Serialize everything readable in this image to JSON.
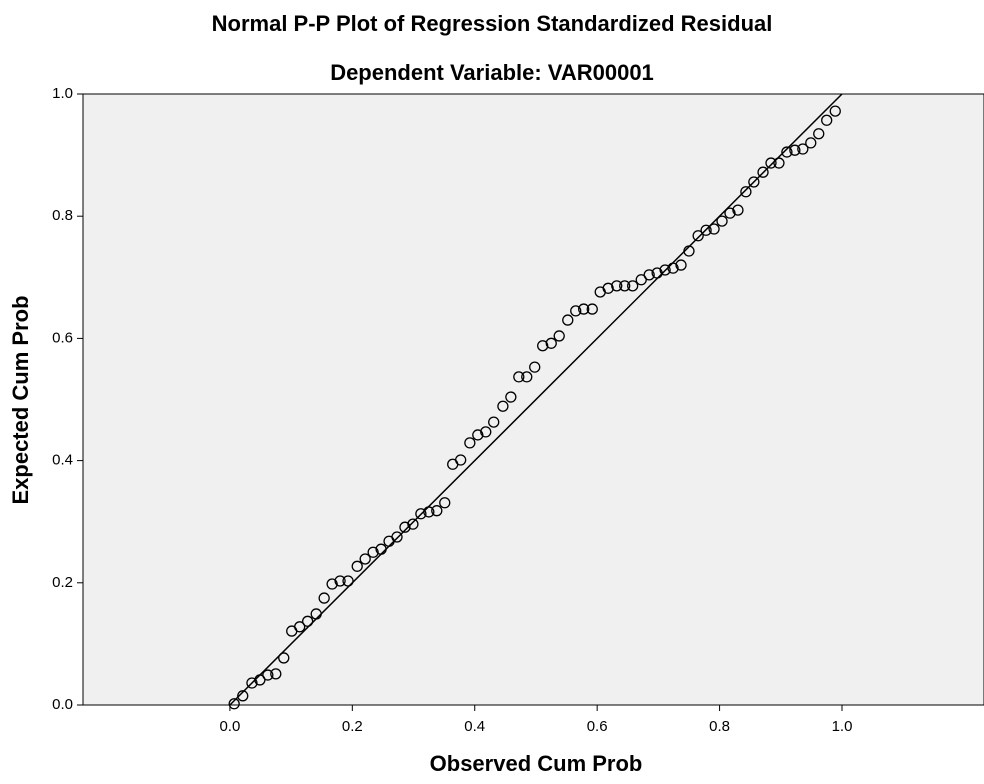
{
  "chart_data": {
    "type": "scatter",
    "title": "Normal P-P Plot of Regression Standardized Residual",
    "subtitle": "Dependent Variable: VAR00001",
    "x_label": "Observed Cum Prob",
    "y_label": "Expected Cum Prob",
    "xlim": [
      -0.24,
      1.232
    ],
    "ylim": [
      0,
      1
    ],
    "xticks": [
      {
        "value": 0,
        "label": "0.0"
      },
      {
        "value": 0.2,
        "label": "0.2"
      },
      {
        "value": 0.4,
        "label": "0.4"
      },
      {
        "value": 0.6,
        "label": "0.6"
      },
      {
        "value": 0.8,
        "label": "0.8"
      },
      {
        "value": 1,
        "label": "1.0"
      }
    ],
    "yticks": [
      {
        "value": 0,
        "label": "0.0"
      },
      {
        "value": 0.2,
        "label": "0.2"
      },
      {
        "value": 0.4,
        "label": "0.4"
      },
      {
        "value": 0.6,
        "label": "0.6"
      },
      {
        "value": 0.8,
        "label": "0.8"
      },
      {
        "value": 1,
        "label": "1.0"
      }
    ],
    "reference_line": true,
    "x": [
      0.007,
      0.021,
      0.036,
      0.049,
      0.062,
      0.075,
      0.088,
      0.101,
      0.114,
      0.127,
      0.141,
      0.154,
      0.167,
      0.18,
      0.193,
      0.208,
      0.221,
      0.234,
      0.247,
      0.26,
      0.273,
      0.286,
      0.299,
      0.312,
      0.325,
      0.338,
      0.351,
      0.364,
      0.377,
      0.392,
      0.405,
      0.418,
      0.431,
      0.446,
      0.459,
      0.472,
      0.485,
      0.498,
      0.511,
      0.525,
      0.538,
      0.552,
      0.565,
      0.578,
      0.592,
      0.605,
      0.618,
      0.632,
      0.645,
      0.658,
      0.672,
      0.685,
      0.698,
      0.711,
      0.724,
      0.737,
      0.75,
      0.765,
      0.778,
      0.791,
      0.804,
      0.817,
      0.83,
      0.843,
      0.856,
      0.871,
      0.884,
      0.897,
      0.91,
      0.923,
      0.936,
      0.949,
      0.962,
      0.975,
      0.989
    ],
    "values": [
      0.002,
      0.015,
      0.036,
      0.041,
      0.049,
      0.051,
      0.077,
      0.121,
      0.128,
      0.137,
      0.149,
      0.175,
      0.198,
      0.203,
      0.203,
      0.227,
      0.239,
      0.25,
      0.255,
      0.268,
      0.275,
      0.291,
      0.296,
      0.313,
      0.316,
      0.318,
      0.331,
      0.394,
      0.401,
      0.429,
      0.442,
      0.447,
      0.463,
      0.489,
      0.504,
      0.537,
      0.537,
      0.553,
      0.588,
      0.592,
      0.604,
      0.63,
      0.645,
      0.648,
      0.648,
      0.676,
      0.682,
      0.686,
      0.686,
      0.686,
      0.696,
      0.704,
      0.707,
      0.712,
      0.715,
      0.72,
      0.743,
      0.768,
      0.777,
      0.779,
      0.792,
      0.805,
      0.81,
      0.84,
      0.856,
      0.872,
      0.887,
      0.887,
      0.905,
      0.908,
      0.91,
      0.92,
      0.935,
      0.957,
      0.972
    ]
  }
}
